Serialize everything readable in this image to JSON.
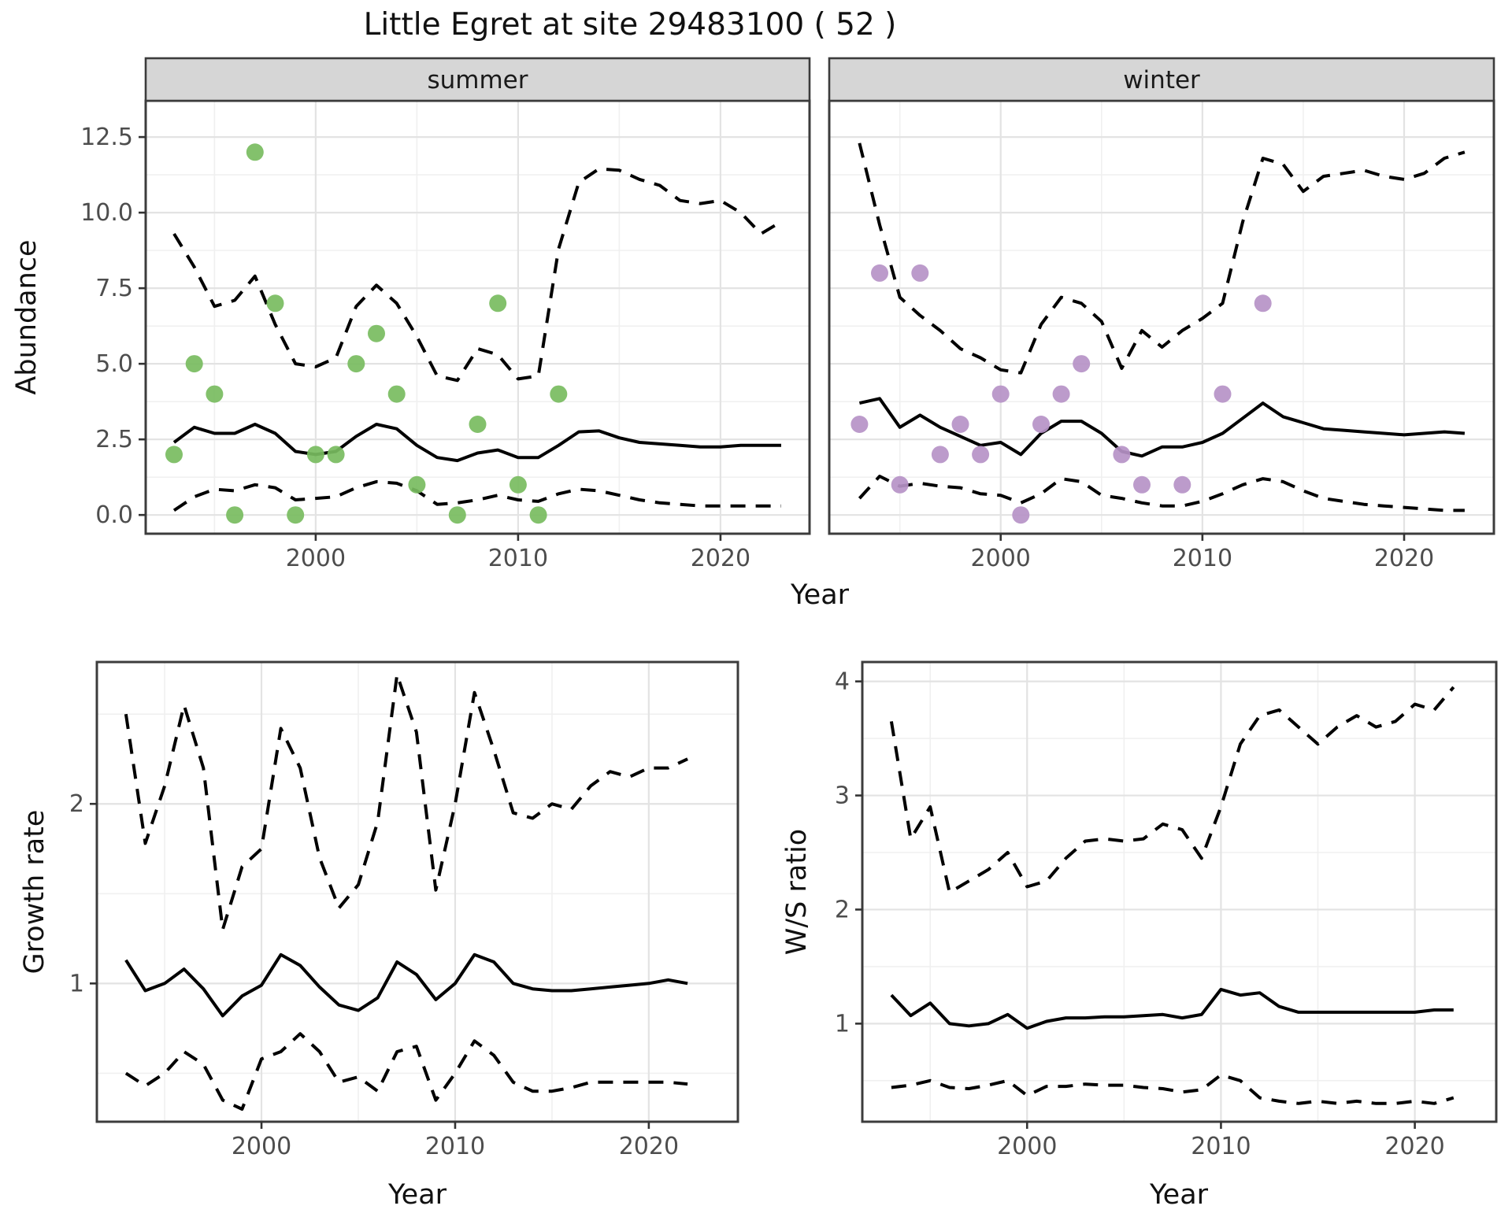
{
  "title": "Little Egret at site 29483100 ( 52 )",
  "labels": {
    "abundance": "Abundance",
    "growth": "Growth rate",
    "ws": "W/S ratio",
    "year": "Year"
  },
  "colors": {
    "summer_points": "#78bc5f",
    "winter_points": "#b692c7",
    "line": "#000000",
    "strip_fill": "#d6d6d6",
    "strip_border": "#3c3c3c",
    "panel_border": "#3c3c3c",
    "grid_major": "#e3e3e3",
    "grid_minor": "#f0f0f0",
    "tick_text": "#4d4d4d",
    "tick_mark": "#333333"
  },
  "chart_data": [
    {
      "id": "abundance-summer",
      "type": "line+scatter",
      "facet_label": "summer",
      "xlabel": "Year",
      "ylabel": "Abundance",
      "xlim": [
        1991.6,
        2024.4
      ],
      "ylim": [
        -0.62,
        13.7
      ],
      "x_ticks": [
        2000,
        2010,
        2020
      ],
      "x_tick_labels": [
        "2000",
        "2010",
        "2020"
      ],
      "y_ticks": [
        0,
        2.5,
        5,
        7.5,
        10,
        12.5
      ],
      "y_tick_labels": [
        "0.0",
        "2.5",
        "5.0",
        "7.5",
        "10.0",
        "12.5"
      ],
      "point_color": "#78bc5f",
      "points": {
        "years": [
          1993,
          1994,
          1995,
          1996,
          1997,
          1998,
          1999,
          2000,
          2001,
          2002,
          2003,
          2004,
          2005,
          2007,
          2008,
          2009,
          2010,
          2011,
          2012
        ],
        "values": [
          2,
          5,
          4,
          0,
          12,
          7,
          0,
          2,
          2,
          5,
          6,
          4,
          1,
          0,
          3,
          7,
          1,
          0,
          4
        ]
      },
      "series": [
        {
          "name": "median",
          "style": "solid",
          "years": [
            1993,
            1994,
            1995,
            1996,
            1997,
            1998,
            1999,
            2000,
            2001,
            2002,
            2003,
            2004,
            2005,
            2006,
            2007,
            2008,
            2009,
            2010,
            2011,
            2012,
            2013,
            2014,
            2015,
            2016,
            2017,
            2018,
            2019,
            2020,
            2021,
            2022,
            2023
          ],
          "values": [
            2.4,
            2.9,
            2.7,
            2.7,
            3.0,
            2.7,
            2.1,
            2.0,
            2.1,
            2.6,
            3.0,
            2.85,
            2.3,
            1.9,
            1.8,
            2.05,
            2.15,
            1.9,
            1.9,
            2.3,
            2.75,
            2.78,
            2.55,
            2.4,
            2.35,
            2.3,
            2.25,
            2.25,
            2.3,
            2.3,
            2.3
          ]
        },
        {
          "name": "upper-ci",
          "style": "dashed",
          "years": [
            1993,
            1994,
            1995,
            1996,
            1997,
            1998,
            1999,
            2000,
            2001,
            2002,
            2003,
            2004,
            2005,
            2006,
            2007,
            2008,
            2009,
            2010,
            2011,
            2012,
            2013,
            2014,
            2015,
            2016,
            2017,
            2018,
            2019,
            2020,
            2021,
            2022,
            2023
          ],
          "values": [
            9.3,
            8.2,
            6.9,
            7.1,
            7.9,
            6.3,
            5.0,
            4.9,
            5.2,
            6.9,
            7.6,
            7.0,
            5.9,
            4.6,
            4.45,
            5.5,
            5.3,
            4.5,
            4.6,
            8.8,
            11.0,
            11.45,
            11.4,
            11.1,
            10.9,
            10.4,
            10.3,
            10.4,
            10.0,
            9.3,
            9.7
          ]
        },
        {
          "name": "lower-ci",
          "style": "dashed",
          "years": [
            1993,
            1994,
            1995,
            1996,
            1997,
            1998,
            1999,
            2000,
            2001,
            2002,
            2003,
            2004,
            2005,
            2006,
            2007,
            2008,
            2009,
            2010,
            2011,
            2012,
            2013,
            2014,
            2015,
            2016,
            2017,
            2018,
            2019,
            2020,
            2021,
            2022,
            2023
          ],
          "values": [
            0.15,
            0.6,
            0.85,
            0.8,
            1.0,
            0.9,
            0.5,
            0.55,
            0.6,
            0.9,
            1.1,
            1.05,
            0.8,
            0.35,
            0.4,
            0.5,
            0.65,
            0.5,
            0.45,
            0.7,
            0.85,
            0.8,
            0.65,
            0.5,
            0.4,
            0.35,
            0.3,
            0.3,
            0.3,
            0.3,
            0.3
          ]
        }
      ]
    },
    {
      "id": "abundance-winter",
      "type": "line+scatter",
      "facet_label": "winter",
      "xlabel": "Year",
      "ylabel": "Abundance",
      "xlim": [
        1991.5,
        2024.45
      ],
      "ylim": [
        -0.62,
        13.7
      ],
      "x_ticks": [
        2000,
        2010,
        2020
      ],
      "x_tick_labels": [
        "2000",
        "2010",
        "2020"
      ],
      "y_ticks": [
        0,
        2.5,
        5,
        7.5,
        10,
        12.5
      ],
      "y_tick_labels": [
        "0.0",
        "2.5",
        "5.0",
        "7.5",
        "10.0",
        "12.5"
      ],
      "point_color": "#b692c7",
      "points": {
        "years": [
          1993,
          1994,
          1995,
          1996,
          1997,
          1998,
          1999,
          2000,
          2001,
          2002,
          2003,
          2004,
          2006,
          2007,
          2009,
          2011,
          2013
        ],
        "values": [
          3,
          8,
          1,
          8,
          2,
          3,
          2,
          4,
          0,
          3,
          4,
          5,
          2,
          1,
          1,
          4,
          7
        ]
      },
      "series": [
        {
          "name": "median",
          "style": "solid",
          "years": [
            1993,
            1994,
            1995,
            1996,
            1997,
            1998,
            1999,
            2000,
            2001,
            2002,
            2003,
            2004,
            2005,
            2006,
            2007,
            2008,
            2009,
            2010,
            2011,
            2012,
            2013,
            2014,
            2015,
            2016,
            2017,
            2018,
            2019,
            2020,
            2021,
            2022,
            2023
          ],
          "values": [
            3.7,
            3.85,
            2.9,
            3.3,
            2.9,
            2.6,
            2.3,
            2.4,
            2.0,
            2.7,
            3.1,
            3.1,
            2.7,
            2.1,
            1.95,
            2.25,
            2.25,
            2.4,
            2.7,
            3.2,
            3.7,
            3.25,
            3.05,
            2.85,
            2.8,
            2.75,
            2.7,
            2.65,
            2.7,
            2.75,
            2.7
          ]
        },
        {
          "name": "upper-ci",
          "style": "dashed",
          "years": [
            1993,
            1994,
            1995,
            1996,
            1997,
            1998,
            1999,
            2000,
            2001,
            2002,
            2003,
            2004,
            2005,
            2006,
            2007,
            2008,
            2009,
            2010,
            2011,
            2012,
            2013,
            2014,
            2015,
            2016,
            2017,
            2018,
            2019,
            2020,
            2021,
            2022,
            2023
          ],
          "values": [
            12.3,
            9.6,
            7.2,
            6.6,
            6.1,
            5.5,
            5.2,
            4.8,
            4.7,
            6.3,
            7.2,
            7.0,
            6.4,
            4.85,
            6.1,
            5.55,
            6.1,
            6.5,
            7.0,
            9.7,
            11.8,
            11.6,
            10.7,
            11.2,
            11.3,
            11.4,
            11.2,
            11.1,
            11.3,
            11.8,
            12.0
          ]
        },
        {
          "name": "lower-ci",
          "style": "dashed",
          "years": [
            1993,
            1994,
            1995,
            1996,
            1997,
            1998,
            1999,
            2000,
            2001,
            2002,
            2003,
            2004,
            2005,
            2006,
            2007,
            2008,
            2009,
            2010,
            2011,
            2012,
            2013,
            2014,
            2015,
            2016,
            2017,
            2018,
            2019,
            2020,
            2021,
            2022,
            2023
          ],
          "values": [
            0.55,
            1.28,
            0.95,
            1.05,
            0.95,
            0.9,
            0.7,
            0.65,
            0.4,
            0.7,
            1.2,
            1.1,
            0.65,
            0.55,
            0.4,
            0.3,
            0.3,
            0.45,
            0.7,
            1.0,
            1.2,
            1.1,
            0.8,
            0.55,
            0.45,
            0.35,
            0.3,
            0.25,
            0.2,
            0.15,
            0.15
          ]
        }
      ]
    },
    {
      "id": "growth-rate",
      "type": "line",
      "facet_label": null,
      "xlabel": "Year",
      "ylabel": "Growth rate",
      "xlim": [
        1991.5,
        2024.6
      ],
      "ylim": [
        0.23,
        2.79
      ],
      "x_ticks": [
        2000,
        2010,
        2020
      ],
      "x_tick_labels": [
        "2000",
        "2010",
        "2020"
      ],
      "y_ticks": [
        1,
        2
      ],
      "y_tick_labels": [
        "1",
        "2"
      ],
      "series": [
        {
          "name": "median",
          "style": "solid",
          "years": [
            1993,
            1994,
            1995,
            1996,
            1997,
            1998,
            1999,
            2000,
            2001,
            2002,
            2003,
            2004,
            2005,
            2006,
            2007,
            2008,
            2009,
            2010,
            2011,
            2012,
            2013,
            2014,
            2015,
            2016,
            2017,
            2018,
            2019,
            2020,
            2021,
            2022
          ],
          "values": [
            1.13,
            0.96,
            1.0,
            1.08,
            0.97,
            0.82,
            0.93,
            0.99,
            1.16,
            1.1,
            0.98,
            0.88,
            0.85,
            0.92,
            1.12,
            1.05,
            0.91,
            1.0,
            1.16,
            1.12,
            1.0,
            0.97,
            0.96,
            0.96,
            0.97,
            0.98,
            0.99,
            1.0,
            1.02,
            1.0
          ]
        },
        {
          "name": "upper-ci",
          "style": "dashed",
          "years": [
            1993,
            1994,
            1995,
            1996,
            1997,
            1998,
            1999,
            2000,
            2001,
            2002,
            2003,
            2004,
            2005,
            2006,
            2007,
            2008,
            2009,
            2010,
            2011,
            2012,
            2013,
            2014,
            2015,
            2016,
            2017,
            2018,
            2019,
            2020,
            2021,
            2022
          ],
          "values": [
            2.5,
            1.78,
            2.1,
            2.55,
            2.2,
            1.3,
            1.65,
            1.75,
            2.42,
            2.2,
            1.7,
            1.42,
            1.55,
            1.9,
            2.72,
            2.4,
            1.52,
            2.0,
            2.62,
            2.3,
            1.95,
            1.92,
            2.0,
            1.97,
            2.1,
            2.18,
            2.15,
            2.2,
            2.2,
            2.25
          ]
        },
        {
          "name": "lower-ci",
          "style": "dashed",
          "years": [
            1993,
            1994,
            1995,
            1996,
            1997,
            1998,
            1999,
            2000,
            2001,
            2002,
            2003,
            2004,
            2005,
            2006,
            2007,
            2008,
            2009,
            2010,
            2011,
            2012,
            2013,
            2014,
            2015,
            2016,
            2017,
            2018,
            2019,
            2020,
            2021,
            2022
          ],
          "values": [
            0.5,
            0.43,
            0.5,
            0.62,
            0.55,
            0.35,
            0.3,
            0.58,
            0.62,
            0.72,
            0.62,
            0.45,
            0.48,
            0.4,
            0.62,
            0.65,
            0.35,
            0.5,
            0.68,
            0.6,
            0.45,
            0.4,
            0.4,
            0.42,
            0.45,
            0.45,
            0.45,
            0.45,
            0.45,
            0.44
          ]
        }
      ]
    },
    {
      "id": "ws-ratio",
      "type": "line",
      "facet_label": null,
      "xlabel": "Year",
      "ylabel": "W/S ratio",
      "xlim": [
        1991.5,
        2024.2
      ],
      "ylim": [
        0.14,
        4.17
      ],
      "x_ticks": [
        2000,
        2010,
        2020
      ],
      "x_tick_labels": [
        "2000",
        "2010",
        "2020"
      ],
      "y_ticks": [
        1,
        2,
        3,
        4
      ],
      "y_tick_labels": [
        "1",
        "2",
        "3",
        "4"
      ],
      "series": [
        {
          "name": "median",
          "style": "solid",
          "years": [
            1993,
            1994,
            1995,
            1996,
            1997,
            1998,
            1999,
            2000,
            2001,
            2002,
            2003,
            2004,
            2005,
            2006,
            2007,
            2008,
            2009,
            2010,
            2011,
            2012,
            2013,
            2014,
            2015,
            2016,
            2017,
            2018,
            2019,
            2020,
            2021,
            2022
          ],
          "values": [
            1.25,
            1.07,
            1.18,
            1.0,
            0.98,
            1.0,
            1.08,
            0.96,
            1.02,
            1.05,
            1.05,
            1.06,
            1.06,
            1.07,
            1.08,
            1.05,
            1.08,
            1.3,
            1.25,
            1.27,
            1.15,
            1.1,
            1.1,
            1.1,
            1.1,
            1.1,
            1.1,
            1.1,
            1.12,
            1.12
          ]
        },
        {
          "name": "upper-ci",
          "style": "dashed",
          "years": [
            1993,
            1994,
            1995,
            1996,
            1997,
            1998,
            1999,
            2000,
            2001,
            2002,
            2003,
            2004,
            2005,
            2006,
            2007,
            2008,
            2009,
            2010,
            2011,
            2012,
            2013,
            2014,
            2015,
            2016,
            2017,
            2018,
            2019,
            2020,
            2021,
            2022
          ],
          "values": [
            3.65,
            2.62,
            2.9,
            2.15,
            2.25,
            2.35,
            2.5,
            2.2,
            2.25,
            2.45,
            2.6,
            2.62,
            2.6,
            2.62,
            2.75,
            2.7,
            2.45,
            2.9,
            3.45,
            3.7,
            3.75,
            3.6,
            3.45,
            3.6,
            3.7,
            3.6,
            3.65,
            3.8,
            3.75,
            3.95
          ]
        },
        {
          "name": "lower-ci",
          "style": "dashed",
          "years": [
            1993,
            1994,
            1995,
            1996,
            1997,
            1998,
            1999,
            2000,
            2001,
            2002,
            2003,
            2004,
            2005,
            2006,
            2007,
            2008,
            2009,
            2010,
            2011,
            2012,
            2013,
            2014,
            2015,
            2016,
            2017,
            2018,
            2019,
            2020,
            2021,
            2022
          ],
          "values": [
            0.44,
            0.46,
            0.5,
            0.44,
            0.43,
            0.46,
            0.5,
            0.37,
            0.45,
            0.45,
            0.47,
            0.46,
            0.46,
            0.44,
            0.43,
            0.4,
            0.42,
            0.55,
            0.5,
            0.35,
            0.32,
            0.3,
            0.32,
            0.3,
            0.32,
            0.3,
            0.3,
            0.32,
            0.3,
            0.35
          ]
        }
      ]
    }
  ]
}
